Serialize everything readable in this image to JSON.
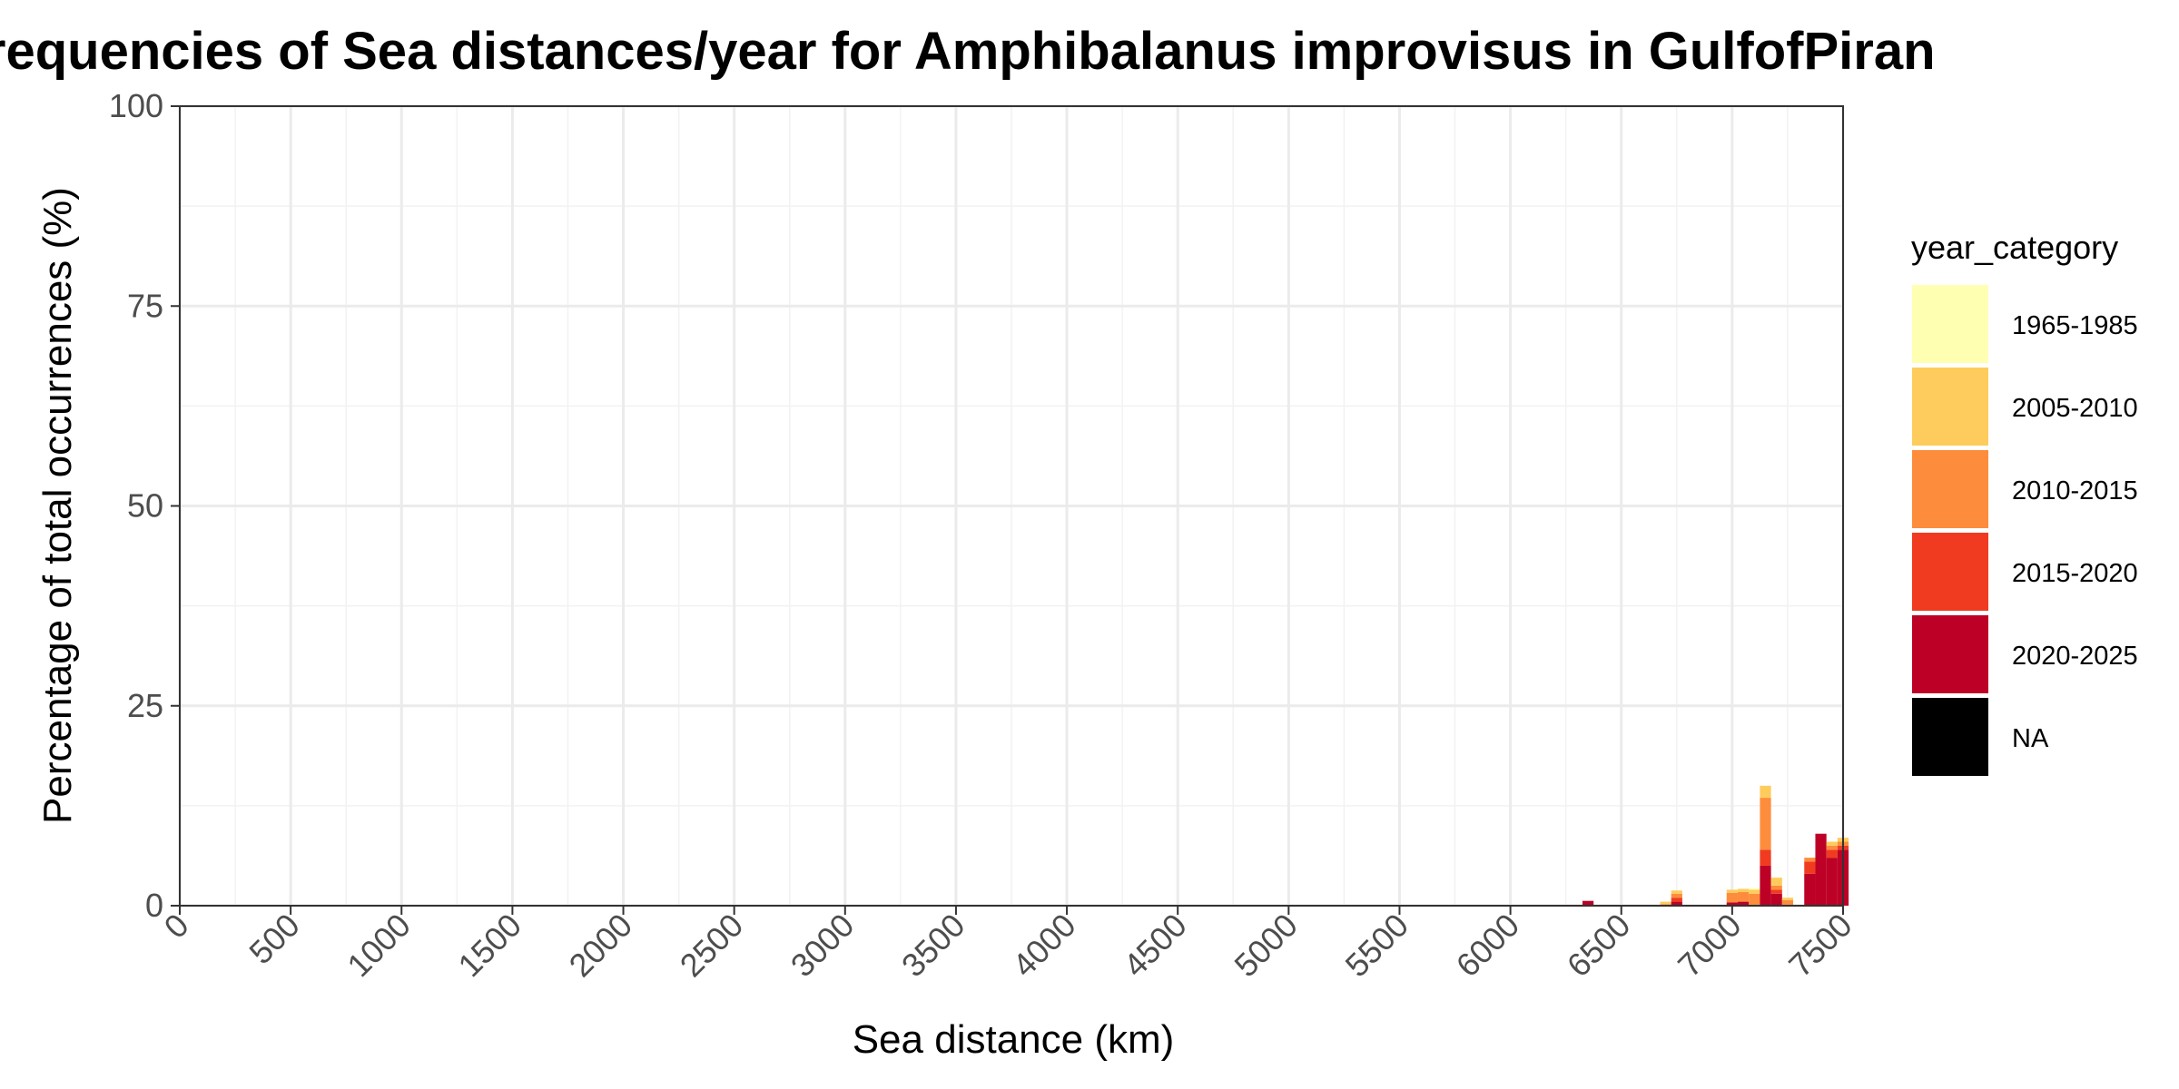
{
  "chart_data": {
    "type": "bar",
    "stacked": true,
    "title": "Frequencies of Sea distances/year for Amphibalanus improvisus in GulfofPiran",
    "xlabel": "Sea distance (km)",
    "ylabel": "Percentage of total occurrences (%)",
    "xlim": [
      0,
      7500
    ],
    "ylim": [
      0,
      100
    ],
    "x_ticks": [
      0,
      500,
      1000,
      1500,
      2000,
      2500,
      3000,
      3500,
      4000,
      4500,
      5000,
      5500,
      6000,
      6500,
      7000,
      7500
    ],
    "y_ticks": [
      0,
      25,
      50,
      75,
      100
    ],
    "bin_width": 50,
    "grid": true,
    "legend": {
      "title": "year_category",
      "position": "right",
      "items": [
        {
          "label": "1965-1985",
          "color": "#FFFFB2"
        },
        {
          "label": "2005-2010",
          "color": "#FECC5C"
        },
        {
          "label": "2010-2015",
          "color": "#FD8D3C"
        },
        {
          "label": "2015-2020",
          "color": "#F03B20"
        },
        {
          "label": "2020-2025",
          "color": "#BD0026"
        },
        {
          "label": "NA",
          "color": "#000000"
        }
      ]
    },
    "bins": [
      {
        "x": 6350,
        "values": {
          "2020-2025": 0.6
        }
      },
      {
        "x": 6700,
        "values": {
          "2005-2010": 0.3,
          "2010-2015": 0.2
        }
      },
      {
        "x": 6750,
        "values": {
          "2005-2010": 0.4,
          "2010-2015": 0.5,
          "2015-2020": 0.5,
          "2020-2025": 0.5
        }
      },
      {
        "x": 7000,
        "values": {
          "2005-2010": 0.4,
          "2010-2015": 1.2,
          "2020-2025": 0.4
        }
      },
      {
        "x": 7050,
        "values": {
          "2005-2010": 0.4,
          "2010-2015": 1.2,
          "2020-2025": 0.5
        }
      },
      {
        "x": 7100,
        "values": {
          "1965-1985": 0.2,
          "2005-2010": 0.5,
          "2010-2015": 1.5
        }
      },
      {
        "x": 7150,
        "values": {
          "2005-2010": 1.5,
          "2010-2015": 6.5,
          "2015-2020": 2.0,
          "2020-2025": 5.0
        }
      },
      {
        "x": 7200,
        "values": {
          "2005-2010": 1.0,
          "2010-2015": 0.5,
          "2015-2020": 0.5,
          "2020-2025": 1.5
        }
      },
      {
        "x": 7250,
        "values": {
          "2005-2010": 0.3,
          "2010-2015": 0.7
        }
      },
      {
        "x": 7350,
        "values": {
          "2010-2015": 0.5,
          "2015-2020": 1.5,
          "2020-2025": 4.0
        }
      },
      {
        "x": 7400,
        "values": {
          "2020-2025": 9.0
        }
      },
      {
        "x": 7450,
        "values": {
          "2005-2010": 0.5,
          "2010-2015": 0.5,
          "2015-2020": 1.0,
          "2020-2025": 6.0
        }
      },
      {
        "x": 7500,
        "values": {
          "2005-2010": 0.5,
          "2010-2015": 0.5,
          "2015-2020": 0.5,
          "2020-2025": 7.0
        }
      }
    ]
  }
}
